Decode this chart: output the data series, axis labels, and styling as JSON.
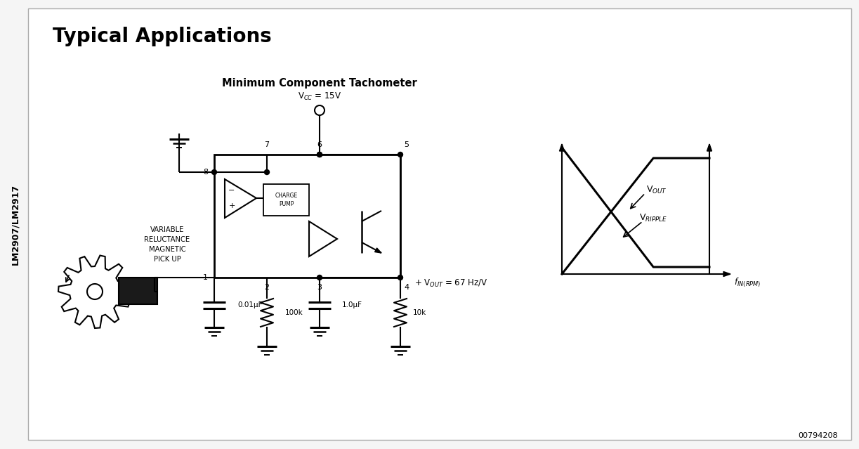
{
  "title": "Typical Applications",
  "subtitle": "Minimum Component Tachometer",
  "side_label": "LM2907/LM2917",
  "vcc_label": "V$_{CC}$ = 15V",
  "graph_xlabel": "f$_{IN(RPM)}$",
  "graph_vout_label": "V$_{OUT}$",
  "graph_vripple_label": "V$_{RIPPLE}$",
  "variable_label": "VARIABLE\nRELUCTANCE\nMAGNETIC\nPICK UP",
  "charge_pump_label": "CHARGE\nPUMP",
  "doc_number": "00794208",
  "bg_color": "#f0f0f0",
  "line_color": "#000000",
  "fig_width": 12.23,
  "fig_height": 6.39,
  "dpi": 100
}
